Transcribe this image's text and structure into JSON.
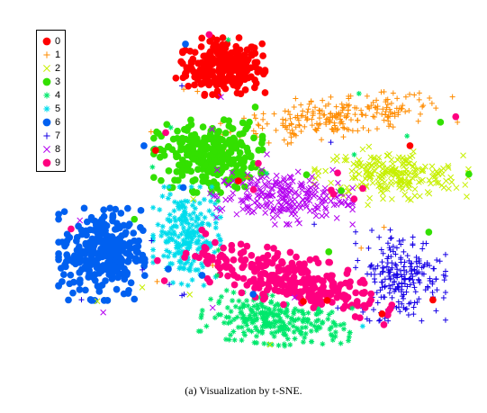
{
  "caption": {
    "tag": "(a)",
    "text": "Visualization by t-SNE."
  },
  "chart_data": {
    "type": "scatter",
    "title": "",
    "xlabel": "",
    "ylabel": "",
    "axes_visible": false,
    "grid": false,
    "legend_position": "top-left",
    "xlim": [
      0,
      100
    ],
    "ylim": [
      0,
      100
    ],
    "series": [
      {
        "name": "0",
        "marker": "dot",
        "color": "#ff0000",
        "cluster": {
          "cx": 43.7,
          "cy": 87.2,
          "sx": 4.4,
          "sy": 3.8,
          "angle": 0,
          "count": 260
        }
      },
      {
        "name": "1",
        "marker": "plus",
        "color": "#ff8c00",
        "cluster": {
          "cx": 70.5,
          "cy": 72.4,
          "sx": 12.5,
          "sy": 2.6,
          "angle": 9,
          "count": 230
        }
      },
      {
        "name": "2",
        "marker": "cross",
        "color": "#c7f000",
        "cluster": {
          "cx": 83.0,
          "cy": 55.8,
          "sx": 8.2,
          "sy": 3.2,
          "angle": -3,
          "count": 220
        }
      },
      {
        "name": "3",
        "marker": "dot",
        "color": "#33e000",
        "cluster": {
          "cx": 40.0,
          "cy": 61.2,
          "sx": 5.8,
          "sy": 4.8,
          "angle": 0,
          "count": 280
        }
      },
      {
        "name": "4",
        "marker": "star",
        "color": "#00e86c",
        "cluster": {
          "cx": 56.0,
          "cy": 13.5,
          "sx": 8.0,
          "sy": 3.2,
          "angle": -8,
          "count": 260
        }
      },
      {
        "name": "5",
        "marker": "star",
        "color": "#00dcec",
        "cluster": {
          "cx": 35.0,
          "cy": 38.0,
          "sx": 3.6,
          "sy": 6.5,
          "angle": 0,
          "count": 220
        }
      },
      {
        "name": "6",
        "marker": "dot",
        "color": "#0060f0",
        "cluster": {
          "cx": 15.0,
          "cy": 33.0,
          "sx": 4.6,
          "sy": 6.2,
          "angle": 0,
          "count": 300
        }
      },
      {
        "name": "7",
        "marker": "plus",
        "color": "#1600e6",
        "cluster": {
          "cx": 85.2,
          "cy": 26.6,
          "sx": 4.8,
          "sy": 6.0,
          "angle": 0,
          "count": 220
        }
      },
      {
        "name": "8",
        "marker": "cross",
        "color": "#b400f0",
        "cluster": {
          "cx": 57.2,
          "cy": 49.3,
          "sx": 7.6,
          "sy": 3.6,
          "angle": 0,
          "count": 230
        }
      },
      {
        "name": "9",
        "marker": "dot",
        "color": "#ff0080",
        "cluster": {
          "cx": 59.0,
          "cy": 25.6,
          "sx": 11.5,
          "sy": 3.4,
          "angle": -18,
          "count": 280
        }
      }
    ]
  }
}
